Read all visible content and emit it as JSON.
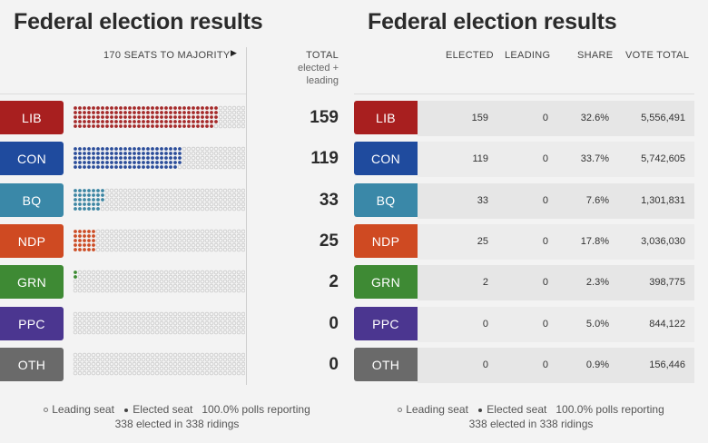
{
  "titles": {
    "left": "Federal election results",
    "right": "Federal election results"
  },
  "left_header": {
    "majority": "170 SEATS TO MAJORITY",
    "total_line1": "TOTAL",
    "total_line2": "elected +",
    "total_line3": "leading"
  },
  "right_header": {
    "elected": "ELECTED",
    "leading": "LEADING",
    "share": "SHARE",
    "vote_total": "VOTE TOTAL"
  },
  "chart_data": {
    "type": "table",
    "columns": [
      "TOTAL elected + leading",
      "ELECTED",
      "LEADING",
      "SHARE",
      "VOTE TOTAL"
    ],
    "seats_per_party_grid": 67,
    "parties": [
      {
        "name": "LIB",
        "color": "#a81f1f",
        "dot_color": "#a52a2a",
        "total": "159",
        "elected": "159",
        "leading": "0",
        "share": "32.6%",
        "votes": "5,556,491",
        "seats": 159
      },
      {
        "name": "CON",
        "color": "#1f4b9e",
        "dot_color": "#2b4d9a",
        "total": "119",
        "elected": "119",
        "leading": "0",
        "share": "33.7%",
        "votes": "5,742,605",
        "seats": 119
      },
      {
        "name": "BQ",
        "color": "#3a88a8",
        "dot_color": "#3d86a3",
        "total": "33",
        "elected": "33",
        "leading": "0",
        "share": "7.6%",
        "votes": "1,301,831",
        "seats": 33
      },
      {
        "name": "NDP",
        "color": "#cf4a22",
        "dot_color": "#cc4d25",
        "total": "25",
        "elected": "25",
        "leading": "0",
        "share": "17.8%",
        "votes": "3,036,030",
        "seats": 25
      },
      {
        "name": "GRN",
        "color": "#3e8a34",
        "dot_color": "#3b8a31",
        "total": "2",
        "elected": "2",
        "leading": "0",
        "share": "2.3%",
        "votes": "398,775",
        "seats": 2
      },
      {
        "name": "PPC",
        "color": "#4b3690",
        "dot_color": "#4b3690",
        "total": "0",
        "elected": "0",
        "leading": "0",
        "share": "5.0%",
        "votes": "844,122",
        "seats": 0
      },
      {
        "name": "OTH",
        "color": "#6a6a6a",
        "dot_color": "#6a6a6a",
        "total": "0",
        "elected": "0",
        "leading": "0",
        "share": "0.9%",
        "votes": "156,446",
        "seats": 0
      }
    ]
  },
  "legend": {
    "leading": "Leading seat",
    "elected": "Elected seat",
    "polls": "100.0% polls reporting",
    "ridings": "338 elected in 338 ridings"
  }
}
